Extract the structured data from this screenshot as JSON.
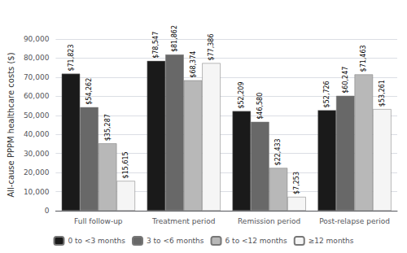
{
  "chart_data": {
    "type": "bar",
    "categories": [
      "Full follow-up",
      "Treatment period",
      "Remission period",
      "Post-relapse period"
    ],
    "series": [
      {
        "name": "0 to <3 months",
        "color": "#1a1a1a",
        "values": [
          71823,
          78547,
          52209,
          52726
        ],
        "value_labels": [
          "$71,823",
          "$78,547",
          "$52,209",
          "$52,726"
        ]
      },
      {
        "name": "3 to <6 months",
        "color": "#686868",
        "values": [
          54262,
          81862,
          46580,
          60247
        ],
        "value_labels": [
          "$54,262",
          "$81,862",
          "$46,580",
          "$60,247"
        ]
      },
      {
        "name": "6 to <12 months",
        "color": "#b8b8b8",
        "values": [
          35287,
          68374,
          22433,
          71463
        ],
        "value_labels": [
          "$35,287",
          "$68,374",
          "$22,433",
          "$71,463"
        ]
      },
      {
        "name": "≥12 months",
        "color": "#f5f5f5",
        "values": [
          15615,
          77386,
          7253,
          53261
        ],
        "value_labels": [
          "$15,615",
          "$77,386",
          "$7,253",
          "$53,261"
        ]
      }
    ],
    "ylabel": "All-cause PPPM healthcare costs ($)",
    "ylim": [
      0,
      90000
    ],
    "yticks": [
      0,
      {
        "value": 10000,
        "label": "10,000"
      },
      {
        "value": 20000,
        "label": "20,000"
      },
      {
        "value": 30000,
        "label": "30,000"
      },
      {
        "value": 40000,
        "label": "40,000"
      },
      {
        "value": 50000,
        "label": "50,000"
      },
      {
        "value": 60000,
        "label": "60,000"
      },
      {
        "value": 70000,
        "label": "70,000"
      },
      {
        "value": 80000,
        "label": "80,000"
      },
      {
        "value": 90000,
        "label": "90,000"
      }
    ],
    "grid": true,
    "legend": "bottom",
    "data_labels": true
  }
}
